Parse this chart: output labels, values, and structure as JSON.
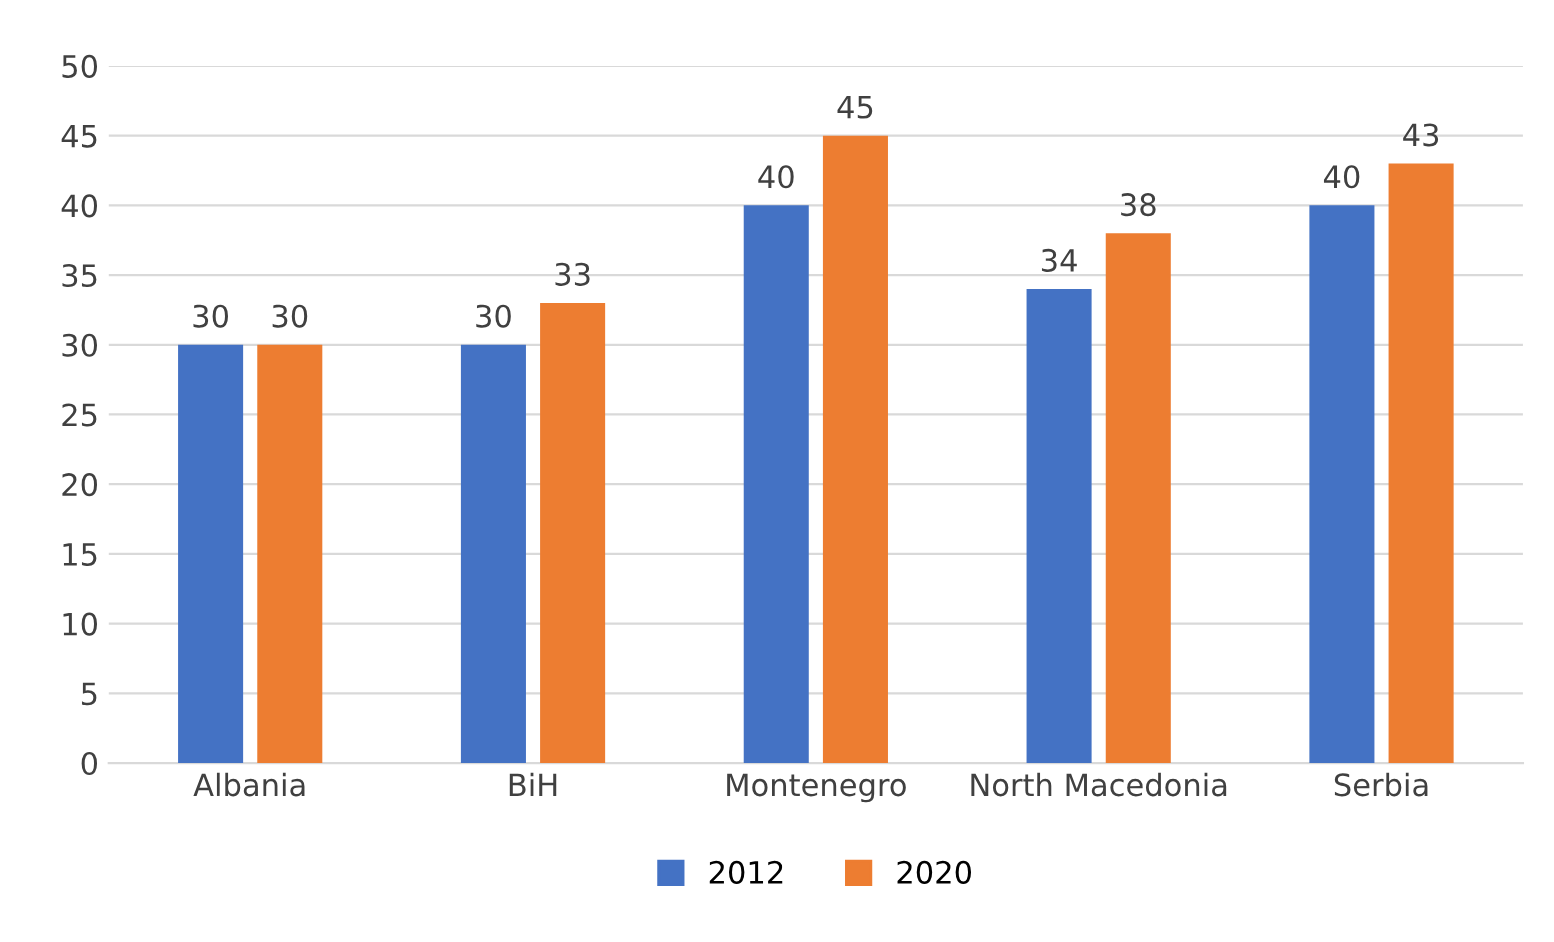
{
  "chart_data": {
    "type": "bar",
    "categories": [
      "Albania",
      "BiH",
      "Montenegro",
      "North Macedonia",
      "Serbia"
    ],
    "series": [
      {
        "name": "2012",
        "color": "#4472c4",
        "values": [
          30,
          30,
          40,
          34,
          40
        ]
      },
      {
        "name": "2020",
        "color": "#ed7d31",
        "values": [
          30,
          33,
          45,
          38,
          43
        ]
      }
    ],
    "ylim": [
      0,
      50
    ],
    "yticks": [
      0,
      5,
      10,
      15,
      20,
      25,
      30,
      35,
      40,
      45,
      50
    ],
    "grid": "y",
    "legend": "bottom",
    "data_labels": true
  }
}
